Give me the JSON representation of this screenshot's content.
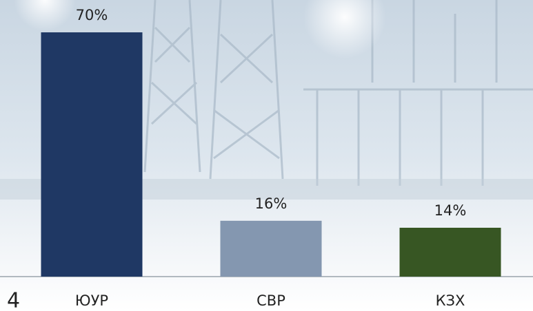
{
  "chart_data": {
    "type": "bar",
    "categories": [
      "ЮУР",
      "СВР",
      "КЗХ"
    ],
    "values": [
      70,
      16,
      14
    ],
    "value_labels": [
      "70%",
      "16%",
      "14%"
    ],
    "colors": [
      "#1f3864",
      "#8497b0",
      "#375623"
    ]
  },
  "footer": {
    "page_number": "4"
  }
}
